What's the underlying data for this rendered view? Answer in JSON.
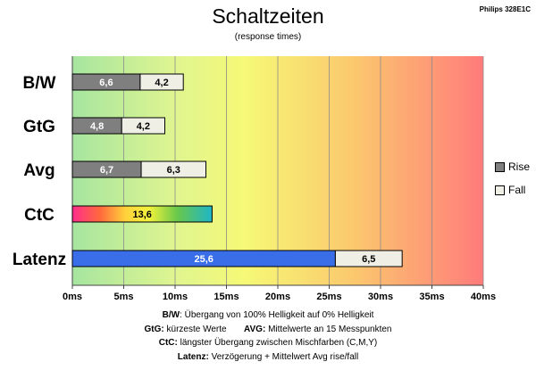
{
  "header": {
    "title": "Schaltzeiten",
    "subtitle": "(response times)",
    "model": "Philips 328E1C"
  },
  "colors": {
    "rise": "#7f7f7f",
    "fall": "#f0efe6",
    "latency": "#3a6ee8",
    "background_gradient": [
      "#a6e5a0",
      "#f6f976",
      "#fbb86a",
      "#ff7b7b"
    ]
  },
  "chart_data": {
    "type": "bar",
    "orientation": "horizontal",
    "stacked": true,
    "categories": [
      "B/W",
      "GtG",
      "Avg",
      "CtC",
      "Latenz"
    ],
    "series": [
      {
        "name": "Rise",
        "values": [
          6.6,
          4.8,
          6.7,
          null,
          null
        ]
      },
      {
        "name": "Fall",
        "values": [
          4.2,
          4.2,
          6.3,
          null,
          null
        ]
      }
    ],
    "ctc": {
      "value": 13.6,
      "label": "13,6",
      "style": "rainbow"
    },
    "latenz": {
      "values": [
        25.6,
        6.5
      ],
      "labels": [
        "25,6",
        "6,5"
      ]
    },
    "value_labels": {
      "B/W": [
        "6,6",
        "4,2"
      ],
      "GtG": [
        "4,8",
        "4,2"
      ],
      "Avg": [
        "6,7",
        "6,3"
      ]
    },
    "xlim": [
      0,
      40
    ],
    "xticks": [
      0,
      5,
      10,
      15,
      20,
      25,
      30,
      35,
      40
    ],
    "xtick_labels": [
      "0ms",
      "5ms",
      "10ms",
      "15ms",
      "20ms",
      "25ms",
      "30ms",
      "35ms",
      "40ms"
    ],
    "grid": "vertical",
    "legend_position": "right"
  },
  "notes": {
    "line1_key": "B/W",
    "line1_text": ":  Übergang von 100% Helligkeit auf 0% Helligkeit",
    "line2_key_a": "GtG:",
    "line2_text_a": " kürzeste  Werte",
    "line2_key_b": "AVG:",
    "line2_text_b": " Mittelwerte  an 15 Messpunkten",
    "line3_key": "CtC:",
    "line3_text": " längster Übergang  zwischen Mischfarben  (C,M,Y)",
    "line4_key": "Latenz:",
    "line4_text": " Verzögerung  + Mittelwert Avg rise/fall"
  }
}
